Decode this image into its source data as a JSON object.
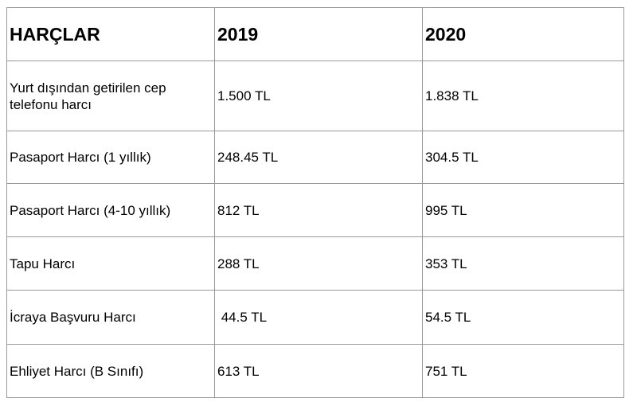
{
  "table": {
    "headers": [
      "HARÇLAR",
      "2019",
      "2020"
    ],
    "rows": [
      [
        "Yurt dışından getirilen cep telefonu harcı",
        "1.500 TL",
        "1.838 TL"
      ],
      [
        "Pasaport Harcı (1 yıllık)",
        "248.45 TL",
        "304.5 TL"
      ],
      [
        "Pasaport Harcı (4-10 yıllık)",
        "812 TL",
        "995 TL"
      ],
      [
        "Tapu Harcı",
        "288 TL",
        "353 TL"
      ],
      [
        "İcraya Başvuru Harcı",
        " 44.5 TL",
        "54.5 TL"
      ],
      [
        "Ehliyet Harcı (B Sınıfı)",
        "613 TL",
        "751 TL"
      ]
    ]
  }
}
